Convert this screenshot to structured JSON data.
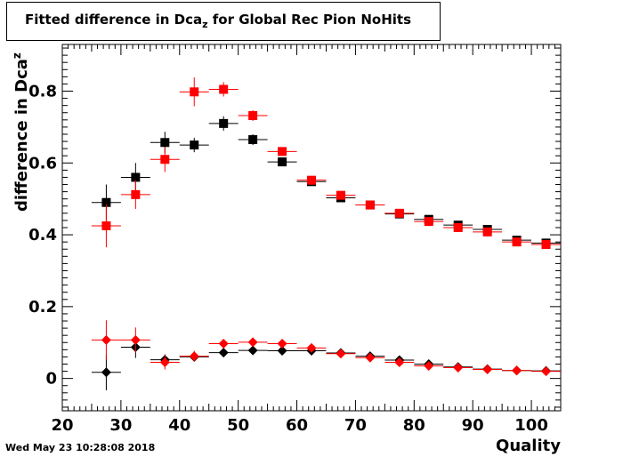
{
  "timestamp": "Wed May 23 10:28:08 2018",
  "chart_data": {
    "type": "scatter",
    "title_main": "Fitted difference in Dca",
    "title_sub": "z",
    "title_rest": " for Global Rec Pion NoHits",
    "xlabel": "Quality",
    "ylabel_main": "difference in Dca",
    "ylabel_sup": "z",
    "xlim": [
      20,
      105
    ],
    "ylim": [
      -0.09,
      0.93
    ],
    "xticks": [
      20,
      30,
      40,
      50,
      60,
      70,
      80,
      90,
      100
    ],
    "yticks": [
      0,
      0.2,
      0.4,
      0.6,
      0.8
    ],
    "ytick_labels": [
      "0",
      "0.2",
      "0.4",
      "0.6",
      "0.8"
    ],
    "grid": false,
    "series": [
      {
        "color": "#000000",
        "marker": "square",
        "x": [
          27.5,
          32.5,
          37.5,
          42.5,
          47.5,
          52.5,
          57.5,
          62.5,
          67.5,
          72.5,
          77.5,
          82.5,
          87.5,
          92.5,
          97.5,
          102.5
        ],
        "y": [
          0.49,
          0.56,
          0.657,
          0.65,
          0.71,
          0.665,
          0.603,
          0.548,
          0.503,
          0.483,
          0.458,
          0.443,
          0.427,
          0.415,
          0.385,
          0.377
        ],
        "yerr": [
          0.05,
          0.04,
          0.03,
          0.02,
          0.02,
          0.015,
          0.01,
          0.01,
          0.008,
          0.007,
          0.006,
          0.006,
          0.006,
          0.006,
          0.006,
          0.006
        ]
      },
      {
        "color": "#ff0000",
        "marker": "square",
        "x": [
          27.5,
          32.5,
          37.5,
          42.5,
          47.5,
          52.5,
          57.5,
          62.5,
          67.5,
          72.5,
          77.5,
          82.5,
          87.5,
          92.5,
          97.5,
          102.5
        ],
        "y": [
          0.425,
          0.512,
          0.61,
          0.798,
          0.805,
          0.732,
          0.632,
          0.552,
          0.51,
          0.483,
          0.46,
          0.437,
          0.42,
          0.408,
          0.38,
          0.373
        ],
        "yerr": [
          0.06,
          0.04,
          0.035,
          0.04,
          0.02,
          0.015,
          0.012,
          0.01,
          0.008,
          0.007,
          0.006,
          0.006,
          0.006,
          0.006,
          0.006,
          0.006
        ]
      },
      {
        "color": "#000000",
        "marker": "diamond",
        "x": [
          27.5,
          32.5,
          37.5,
          42.5,
          47.5,
          52.5,
          57.5,
          62.5,
          67.5,
          72.5,
          77.5,
          82.5,
          87.5,
          92.5,
          97.5,
          102.5
        ],
        "y": [
          0.017,
          0.087,
          0.052,
          0.06,
          0.072,
          0.078,
          0.077,
          0.077,
          0.071,
          0.062,
          0.051,
          0.04,
          0.032,
          0.026,
          0.022,
          0.021
        ],
        "yerr": [
          0.05,
          0.03,
          0.015,
          0.01,
          0.006,
          0.005,
          0.004,
          0.004,
          0.003,
          0.003,
          0.003,
          0.003,
          0.003,
          0.003,
          0.003,
          0.003
        ]
      },
      {
        "color": "#ff0000",
        "marker": "diamond",
        "x": [
          27.5,
          32.5,
          37.5,
          42.5,
          47.5,
          52.5,
          57.5,
          62.5,
          67.5,
          72.5,
          77.5,
          82.5,
          87.5,
          92.5,
          97.5,
          102.5
        ],
        "y": [
          0.107,
          0.107,
          0.045,
          0.062,
          0.097,
          0.101,
          0.097,
          0.085,
          0.069,
          0.058,
          0.045,
          0.035,
          0.03,
          0.025,
          0.022,
          0.02
        ],
        "yerr": [
          0.055,
          0.035,
          0.02,
          0.015,
          0.01,
          0.008,
          0.006,
          0.005,
          0.004,
          0.004,
          0.004,
          0.004,
          0.003,
          0.003,
          0.003,
          0.003
        ]
      }
    ]
  }
}
